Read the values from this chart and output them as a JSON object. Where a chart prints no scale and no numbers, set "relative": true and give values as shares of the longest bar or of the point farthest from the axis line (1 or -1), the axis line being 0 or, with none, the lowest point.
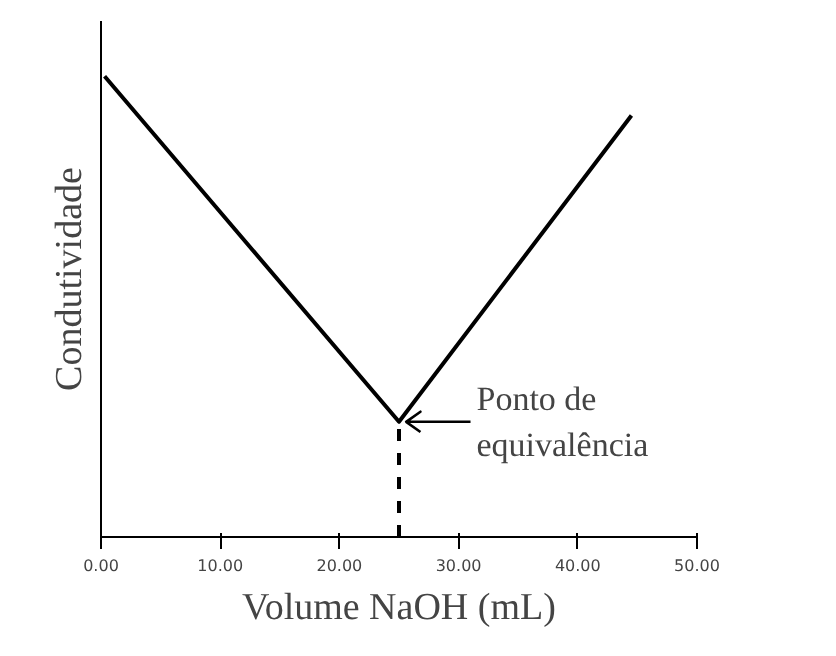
{
  "chart_data": {
    "type": "line",
    "relative": true,
    "xlabel": "Volume NaOH (mL)",
    "ylabel": "Condutividade",
    "x": [
      0.3,
      25,
      44.5
    ],
    "series": [
      {
        "color": "#000000",
        "values": [
          1,
          0.25,
          0.915
        ]
      }
    ],
    "xlim": [
      0,
      50
    ],
    "xticks": [
      {
        "value": 0,
        "label": "0.00"
      },
      {
        "value": 10,
        "label": "10.00"
      },
      {
        "value": 20,
        "label": "20.00"
      },
      {
        "value": 30,
        "label": "30.00"
      },
      {
        "value": 40,
        "label": "40.00"
      },
      {
        "value": 50,
        "label": "50.00"
      }
    ],
    "ref_lines": [
      {
        "axis": "x",
        "value": 25,
        "line_style": "dashed",
        "color": "#000000"
      }
    ],
    "annotations": [
      {
        "text": "Ponto de\nequivalência",
        "x": 25,
        "y": 0.25
      }
    ],
    "grid": false,
    "marker": "none",
    "line_style": "solid"
  }
}
